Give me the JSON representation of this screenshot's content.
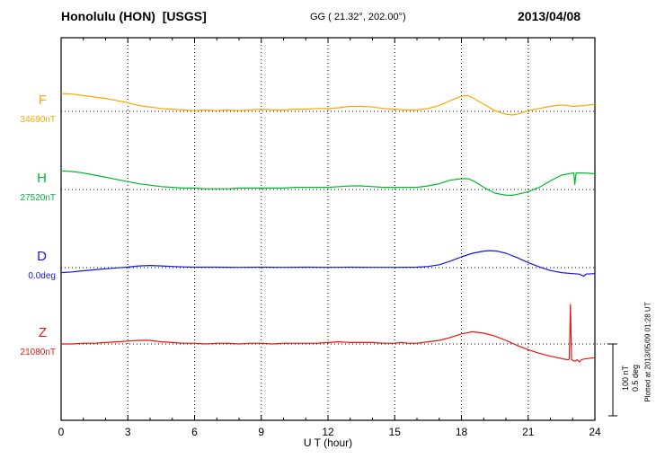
{
  "header": {
    "station": "Honolulu (HON)  [USGS]",
    "coords": "GG ( 21.32°, 202.00°)",
    "date": "2013/04/08"
  },
  "chart_data": {
    "type": "line",
    "title": "Honolulu (HON) [USGS] magnetogram for 2013/04/08",
    "xlabel": "U T (hour)",
    "xlim": [
      0,
      24
    ],
    "x_ticks": [
      0,
      3,
      6,
      9,
      12,
      15,
      18,
      21,
      24
    ],
    "grid": "vertical dotted gridlines every 3 hours; dotted horizontal baseline per trace",
    "legend_position": "left baseline labels",
    "scale_bar": {
      "labels": [
        "100 nT",
        "0.5 deg"
      ],
      "span_nT": 100,
      "span_deg": 0.5
    },
    "footer_note": "Plotted at 2013/05/09 01:28 UT",
    "series": [
      {
        "name": "F",
        "baseline_label": "34690nT",
        "baseline_value": 34690,
        "units": "nT",
        "color": "#ffa500",
        "points": [
          [
            0,
            25
          ],
          [
            0.5,
            24
          ],
          [
            1,
            22
          ],
          [
            1.5,
            20
          ],
          [
            2,
            18
          ],
          [
            2.5,
            15
          ],
          [
            3,
            12
          ],
          [
            3.5,
            8
          ],
          [
            4,
            6
          ],
          [
            4.5,
            4
          ],
          [
            5,
            3
          ],
          [
            5.5,
            2
          ],
          [
            6,
            1
          ],
          [
            6.5,
            2
          ],
          [
            7,
            1
          ],
          [
            7.5,
            2
          ],
          [
            8,
            1
          ],
          [
            8.5,
            2
          ],
          [
            9,
            3
          ],
          [
            9.5,
            2
          ],
          [
            10,
            2
          ],
          [
            10.5,
            3
          ],
          [
            11,
            3
          ],
          [
            11.5,
            4
          ],
          [
            12,
            4
          ],
          [
            12.5,
            5
          ],
          [
            13,
            7
          ],
          [
            13.5,
            7
          ],
          [
            14,
            6
          ],
          [
            14.5,
            4
          ],
          [
            15,
            3
          ],
          [
            15.5,
            2
          ],
          [
            16,
            2
          ],
          [
            16.5,
            4
          ],
          [
            17,
            8
          ],
          [
            17.5,
            15
          ],
          [
            18,
            21
          ],
          [
            18.3,
            22
          ],
          [
            18.6,
            17
          ],
          [
            19,
            10
          ],
          [
            19.5,
            1
          ],
          [
            20,
            -4
          ],
          [
            20.3,
            -5
          ],
          [
            20.6,
            -3
          ],
          [
            21,
            1
          ],
          [
            21.5,
            4
          ],
          [
            22,
            7
          ],
          [
            22.5,
            9
          ],
          [
            23,
            7
          ],
          [
            23.5,
            8
          ],
          [
            24,
            10
          ]
        ]
      },
      {
        "name": "H",
        "baseline_label": "27520nT",
        "baseline_value": 27520,
        "units": "nT",
        "color": "#00b830",
        "points": [
          [
            0,
            26
          ],
          [
            0.5,
            25
          ],
          [
            1,
            23
          ],
          [
            1.5,
            20
          ],
          [
            2,
            17
          ],
          [
            2.5,
            14
          ],
          [
            3,
            11
          ],
          [
            3.5,
            8
          ],
          [
            4,
            6
          ],
          [
            4.5,
            4
          ],
          [
            5,
            3
          ],
          [
            5.5,
            2
          ],
          [
            6,
            2
          ],
          [
            6.5,
            1
          ],
          [
            7,
            1
          ],
          [
            7.5,
            1
          ],
          [
            8,
            2
          ],
          [
            8.5,
            2
          ],
          [
            9,
            2
          ],
          [
            9.5,
            2
          ],
          [
            10,
            2
          ],
          [
            10.5,
            3
          ],
          [
            11,
            3
          ],
          [
            11.5,
            3
          ],
          [
            12,
            3
          ],
          [
            12.5,
            4
          ],
          [
            13,
            5
          ],
          [
            13.5,
            5
          ],
          [
            14,
            4
          ],
          [
            14.5,
            3
          ],
          [
            15,
            3
          ],
          [
            15.5,
            3
          ],
          [
            16,
            3
          ],
          [
            16.5,
            5
          ],
          [
            17,
            8
          ],
          [
            17.5,
            13
          ],
          [
            18,
            15
          ],
          [
            18.3,
            15
          ],
          [
            18.6,
            11
          ],
          [
            19,
            3
          ],
          [
            19.5,
            -5
          ],
          [
            20,
            -8
          ],
          [
            20.3,
            -8
          ],
          [
            20.6,
            -6
          ],
          [
            21,
            -3
          ],
          [
            21.5,
            3
          ],
          [
            22,
            12
          ],
          [
            22.5,
            20
          ],
          [
            23,
            23
          ],
          [
            23.05,
            23
          ],
          [
            23.1,
            7
          ],
          [
            23.15,
            23
          ],
          [
            23.5,
            23
          ],
          [
            24,
            22
          ]
        ]
      },
      {
        "name": "D",
        "baseline_label": "0.0deg",
        "baseline_value": 0.0,
        "units": "deg",
        "color": "#1515dd",
        "points": [
          [
            0,
            -0.035
          ],
          [
            0.5,
            -0.03
          ],
          [
            1,
            -0.022
          ],
          [
            1.5,
            -0.015
          ],
          [
            2,
            -0.008
          ],
          [
            2.5,
            -0.002
          ],
          [
            3,
            0.004
          ],
          [
            3.5,
            0.012
          ],
          [
            4,
            0.015
          ],
          [
            4.5,
            0.012
          ],
          [
            5,
            0.008
          ],
          [
            5.5,
            0.005
          ],
          [
            6,
            0.003
          ],
          [
            7,
            0.003
          ],
          [
            8,
            0.002
          ],
          [
            9,
            0.003
          ],
          [
            10,
            0.002
          ],
          [
            11,
            0.003
          ],
          [
            12,
            0.002
          ],
          [
            13,
            0.003
          ],
          [
            14,
            0.002
          ],
          [
            15,
            0.002
          ],
          [
            16,
            0.003
          ],
          [
            16.5,
            0.008
          ],
          [
            17,
            0.02
          ],
          [
            17.5,
            0.045
          ],
          [
            18,
            0.075
          ],
          [
            18.5,
            0.1
          ],
          [
            19,
            0.115
          ],
          [
            19.3,
            0.118
          ],
          [
            19.6,
            0.115
          ],
          [
            20,
            0.1
          ],
          [
            20.5,
            0.07
          ],
          [
            21,
            0.035
          ],
          [
            21.5,
            0.005
          ],
          [
            22,
            -0.02
          ],
          [
            22.5,
            -0.035
          ],
          [
            23,
            -0.042
          ],
          [
            23.3,
            -0.045
          ],
          [
            23.5,
            -0.06
          ],
          [
            23.6,
            -0.045
          ],
          [
            24,
            -0.042
          ]
        ]
      },
      {
        "name": "Z",
        "baseline_label": "21080nT",
        "baseline_value": 21080,
        "units": "nT",
        "color": "#ee1111",
        "points": [
          [
            0,
            0
          ],
          [
            0.5,
            0
          ],
          [
            1,
            1
          ],
          [
            1.5,
            1
          ],
          [
            2,
            2
          ],
          [
            2.5,
            3
          ],
          [
            3,
            4
          ],
          [
            3.5,
            5
          ],
          [
            4,
            5
          ],
          [
            4.5,
            3
          ],
          [
            5,
            2
          ],
          [
            5.5,
            1
          ],
          [
            6,
            1
          ],
          [
            6.5,
            0
          ],
          [
            7,
            1
          ],
          [
            7.5,
            1
          ],
          [
            8,
            0
          ],
          [
            8.5,
            1
          ],
          [
            9,
            1
          ],
          [
            9.5,
            0
          ],
          [
            10,
            1
          ],
          [
            10.5,
            1
          ],
          [
            11,
            1
          ],
          [
            11.5,
            1
          ],
          [
            12,
            2
          ],
          [
            12.5,
            3
          ],
          [
            13,
            2
          ],
          [
            13.5,
            2
          ],
          [
            14,
            2
          ],
          [
            14.5,
            1
          ],
          [
            15,
            1
          ],
          [
            15.3,
            2
          ],
          [
            15.6,
            1
          ],
          [
            16,
            1
          ],
          [
            16.5,
            3
          ],
          [
            17,
            5
          ],
          [
            17.5,
            9
          ],
          [
            18,
            14
          ],
          [
            18.5,
            17
          ],
          [
            19,
            15
          ],
          [
            19.5,
            11
          ],
          [
            20,
            5
          ],
          [
            20.5,
            -2
          ],
          [
            21,
            -8
          ],
          [
            21.5,
            -13
          ],
          [
            22,
            -17
          ],
          [
            22.3,
            -19
          ],
          [
            22.6,
            -21
          ],
          [
            22.8,
            -22
          ],
          [
            22.85,
            -21
          ],
          [
            22.9,
            55
          ],
          [
            22.95,
            -22
          ],
          [
            23.1,
            -24
          ],
          [
            23.2,
            -22
          ],
          [
            23.3,
            -25
          ],
          [
            23.4,
            -22
          ],
          [
            23.5,
            -21
          ],
          [
            24,
            -19
          ]
        ]
      }
    ]
  }
}
